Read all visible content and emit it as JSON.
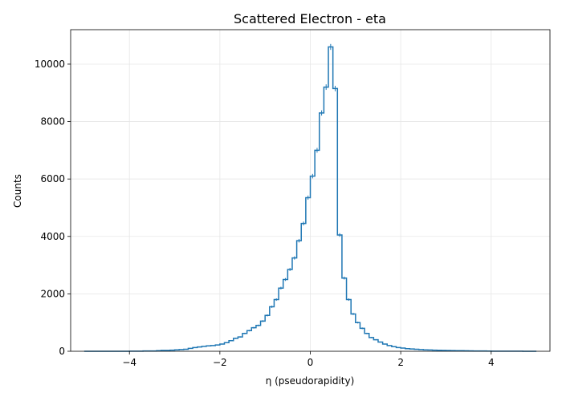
{
  "chart_data": {
    "type": "histogram",
    "title": "Scattered Electron - eta",
    "xlabel": "η (pseudorapidity)",
    "ylabel": "Counts",
    "xlim": [
      -5.3,
      5.3
    ],
    "ylim": [
      0,
      11200
    ],
    "xticks": [
      -4,
      -2,
      0,
      2,
      4
    ],
    "xtick_labels": [
      "−4",
      "−2",
      "0",
      "2",
      "4"
    ],
    "yticks": [
      0,
      2000,
      4000,
      6000,
      8000,
      10000
    ],
    "ytick_labels": [
      "0",
      "2000",
      "4000",
      "6000",
      "8000",
      "10000"
    ],
    "grid": true,
    "series_color": "#1f77b4",
    "bin_range": [
      -5,
      5
    ],
    "bin_width": 0.1,
    "counts": [
      0,
      0,
      0,
      0,
      0,
      0,
      0,
      0,
      0,
      0,
      5,
      5,
      5,
      10,
      10,
      10,
      20,
      30,
      30,
      40,
      50,
      60,
      70,
      100,
      130,
      150,
      170,
      190,
      200,
      220,
      250,
      300,
      370,
      450,
      500,
      620,
      720,
      820,
      900,
      1050,
      1250,
      1550,
      1800,
      2200,
      2500,
      2850,
      3250,
      3850,
      4450,
      5350,
      6100,
      7000,
      8300,
      9200,
      10600,
      9150,
      4050,
      2550,
      1800,
      1300,
      1000,
      800,
      620,
      480,
      400,
      320,
      250,
      200,
      160,
      130,
      110,
      90,
      80,
      70,
      60,
      50,
      45,
      40,
      35,
      30,
      28,
      25,
      22,
      20,
      18,
      15,
      12,
      10,
      10,
      8,
      5,
      5,
      4,
      3,
      2,
      2,
      2,
      1,
      1,
      1
    ]
  }
}
